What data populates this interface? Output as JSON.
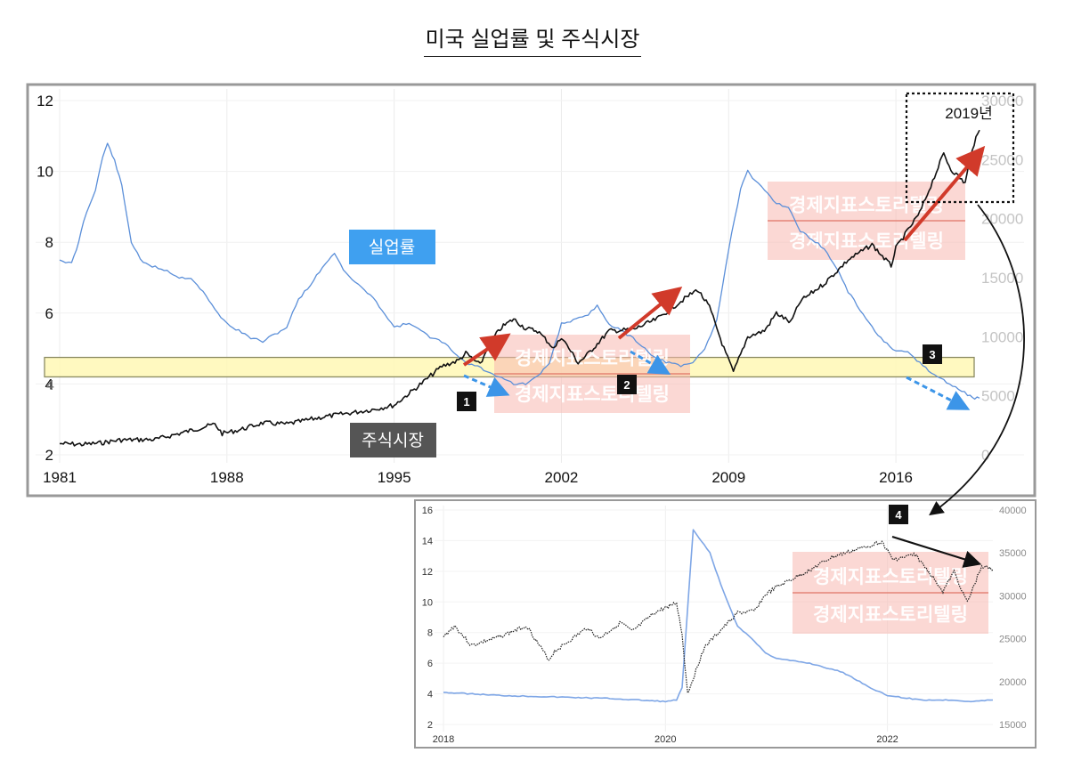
{
  "title": "미국 실업률 및 주식시장",
  "chart_data": [
    {
      "type": "line",
      "x_ticks": [
        1981,
        1988,
        1995,
        2002,
        2009,
        2016
      ],
      "xlim": [
        1981,
        2019.5
      ],
      "y_left_ticks": [
        2,
        4,
        6,
        8,
        10,
        12
      ],
      "ylim_left": [
        2,
        12
      ],
      "y_right_ticks": [
        0,
        5000,
        10000,
        15000,
        20000,
        25000,
        30000
      ],
      "ylim_right": [
        0,
        30000
      ],
      "series": [
        {
          "name": "실업률",
          "axis": "left",
          "color": "#5b8fd9",
          "points": [
            [
              1981.0,
              7.5
            ],
            [
              1981.5,
              7.4
            ],
            [
              1981.8,
              8.0
            ],
            [
              1982.0,
              8.6
            ],
            [
              1982.5,
              9.5
            ],
            [
              1982.8,
              10.4
            ],
            [
              1983.0,
              10.8
            ],
            [
              1983.3,
              10.3
            ],
            [
              1983.6,
              9.6
            ],
            [
              1984.0,
              8.0
            ],
            [
              1984.5,
              7.4
            ],
            [
              1985.0,
              7.3
            ],
            [
              1985.5,
              7.2
            ],
            [
              1986.0,
              7.0
            ],
            [
              1986.5,
              7.0
            ],
            [
              1987.0,
              6.6
            ],
            [
              1987.5,
              6.1
            ],
            [
              1988.0,
              5.7
            ],
            [
              1988.5,
              5.5
            ],
            [
              1989.0,
              5.3
            ],
            [
              1989.5,
              5.2
            ],
            [
              1990.0,
              5.4
            ],
            [
              1990.5,
              5.6
            ],
            [
              1991.0,
              6.4
            ],
            [
              1991.5,
              6.8
            ],
            [
              1992.0,
              7.3
            ],
            [
              1992.5,
              7.7
            ],
            [
              1993.0,
              7.1
            ],
            [
              1993.5,
              6.8
            ],
            [
              1994.0,
              6.5
            ],
            [
              1994.5,
              6.1
            ],
            [
              1995.0,
              5.6
            ],
            [
              1995.5,
              5.7
            ],
            [
              1996.0,
              5.6
            ],
            [
              1996.5,
              5.3
            ],
            [
              1997.0,
              5.2
            ],
            [
              1997.5,
              4.9
            ],
            [
              1998.0,
              4.6
            ],
            [
              1998.5,
              4.5
            ],
            [
              1999.0,
              4.3
            ],
            [
              1999.5,
              4.2
            ],
            [
              2000.0,
              4.0
            ],
            [
              2000.5,
              4.0
            ],
            [
              2001.0,
              4.2
            ],
            [
              2001.5,
              4.6
            ],
            [
              2002.0,
              5.7
            ],
            [
              2002.5,
              5.8
            ],
            [
              2003.0,
              5.9
            ],
            [
              2003.5,
              6.2
            ],
            [
              2004.0,
              5.7
            ],
            [
              2004.5,
              5.5
            ],
            [
              2005.0,
              5.3
            ],
            [
              2005.5,
              5.0
            ],
            [
              2006.0,
              4.7
            ],
            [
              2006.5,
              4.6
            ],
            [
              2007.0,
              4.5
            ],
            [
              2007.5,
              4.6
            ],
            [
              2008.0,
              5.0
            ],
            [
              2008.5,
              5.8
            ],
            [
              2009.0,
              7.8
            ],
            [
              2009.5,
              9.5
            ],
            [
              2009.8,
              10.0
            ],
            [
              2010.0,
              9.8
            ],
            [
              2010.5,
              9.5
            ],
            [
              2011.0,
              9.1
            ],
            [
              2011.5,
              9.0
            ],
            [
              2012.0,
              8.3
            ],
            [
              2012.5,
              8.1
            ],
            [
              2013.0,
              7.8
            ],
            [
              2013.5,
              7.3
            ],
            [
              2014.0,
              6.6
            ],
            [
              2014.5,
              6.1
            ],
            [
              2015.0,
              5.6
            ],
            [
              2015.5,
              5.2
            ],
            [
              2016.0,
              4.9
            ],
            [
              2016.5,
              4.9
            ],
            [
              2017.0,
              4.6
            ],
            [
              2017.5,
              4.3
            ],
            [
              2018.0,
              4.1
            ],
            [
              2018.5,
              3.9
            ],
            [
              2019.0,
              3.7
            ],
            [
              2019.3,
              3.6
            ],
            [
              2019.5,
              3.6
            ]
          ]
        },
        {
          "name": "주식시장",
          "axis": "right",
          "color": "#111111",
          "points": [
            [
              1981.0,
              950
            ],
            [
              1982.0,
              880
            ],
            [
              1982.7,
              1000
            ],
            [
              1983.5,
              1250
            ],
            [
              1985.0,
              1300
            ],
            [
              1986.0,
              1800
            ],
            [
              1987.5,
              2600
            ],
            [
              1987.8,
              1800
            ],
            [
              1988.5,
              2100
            ],
            [
              1989.5,
              2700
            ],
            [
              1990.5,
              2600
            ],
            [
              1991.0,
              2800
            ],
            [
              1992.0,
              3200
            ],
            [
              1993.0,
              3500
            ],
            [
              1994.0,
              3800
            ],
            [
              1995.0,
              4200
            ],
            [
              1996.0,
              5800
            ],
            [
              1997.0,
              7500
            ],
            [
              1997.7,
              8000
            ],
            [
              1998.0,
              8600
            ],
            [
              1998.6,
              7600
            ],
            [
              1999.0,
              9500
            ],
            [
              1999.5,
              10800
            ],
            [
              2000.0,
              11500
            ],
            [
              2000.5,
              10700
            ],
            [
              2001.0,
              10500
            ],
            [
              2001.7,
              9000
            ],
            [
              2002.0,
              10000
            ],
            [
              2002.7,
              7800
            ],
            [
              2003.0,
              8300
            ],
            [
              2003.5,
              9400
            ],
            [
              2004.0,
              10500
            ],
            [
              2005.0,
              10600
            ],
            [
              2006.0,
              11500
            ],
            [
              2007.0,
              13000
            ],
            [
              2007.7,
              14000
            ],
            [
              2008.2,
              12500
            ],
            [
              2008.8,
              9000
            ],
            [
              2009.2,
              7000
            ],
            [
              2009.8,
              10000
            ],
            [
              2010.5,
              10500
            ],
            [
              2011.0,
              12000
            ],
            [
              2011.6,
              11200
            ],
            [
              2012.0,
              13000
            ],
            [
              2013.0,
              14500
            ],
            [
              2014.0,
              16500
            ],
            [
              2015.0,
              17800
            ],
            [
              2015.8,
              16000
            ],
            [
              2016.0,
              17500
            ],
            [
              2017.0,
              20500
            ],
            [
              2018.0,
              25500
            ],
            [
              2018.3,
              24200
            ],
            [
              2018.9,
              23000
            ],
            [
              2019.2,
              26000
            ],
            [
              2019.5,
              27500
            ]
          ]
        }
      ],
      "labels": {
        "unemployment": "실업률",
        "stock": "주식시장",
        "year": "2019년",
        "band": "4",
        "markers": [
          "1",
          "2",
          "3"
        ]
      },
      "watermark": "경제지표스토리텔링"
    },
    {
      "type": "line",
      "x_ticks": [
        2018,
        2020,
        2022
      ],
      "xlim": [
        2018,
        2022.95
      ],
      "y_left_ticks": [
        2,
        4,
        6,
        8,
        10,
        12,
        14,
        16
      ],
      "ylim_left": [
        2,
        16
      ],
      "y_right_ticks": [
        15000,
        20000,
        25000,
        30000,
        35000,
        40000
      ],
      "ylim_right": [
        15000,
        40000
      ],
      "series": [
        {
          "name": "실업률",
          "axis": "left",
          "color": "#7ea6e6",
          "points": [
            [
              2018.0,
              4.1
            ],
            [
              2018.5,
              3.9
            ],
            [
              2019.0,
              3.8
            ],
            [
              2019.5,
              3.7
            ],
            [
              2020.0,
              3.5
            ],
            [
              2020.1,
              3.6
            ],
            [
              2020.15,
              4.4
            ],
            [
              2020.25,
              14.7
            ],
            [
              2020.4,
              13.2
            ],
            [
              2020.5,
              11.1
            ],
            [
              2020.65,
              8.4
            ],
            [
              2020.75,
              7.8
            ],
            [
              2020.9,
              6.7
            ],
            [
              2021.0,
              6.3
            ],
            [
              2021.3,
              6.0
            ],
            [
              2021.6,
              5.4
            ],
            [
              2021.9,
              4.2
            ],
            [
              2022.0,
              3.9
            ],
            [
              2022.3,
              3.6
            ],
            [
              2022.6,
              3.6
            ],
            [
              2022.75,
              3.5
            ],
            [
              2022.95,
              3.6
            ]
          ]
        },
        {
          "name": "주식시장",
          "axis": "right",
          "color": "#222222",
          "points": [
            [
              2018.0,
              25200
            ],
            [
              2018.1,
              26500
            ],
            [
              2018.25,
              24200
            ],
            [
              2018.5,
              25200
            ],
            [
              2018.75,
              26500
            ],
            [
              2018.95,
              22500
            ],
            [
              2019.0,
              23500
            ],
            [
              2019.3,
              26300
            ],
            [
              2019.4,
              25000
            ],
            [
              2019.6,
              26900
            ],
            [
              2019.7,
              25800
            ],
            [
              2019.9,
              28000
            ],
            [
              2020.1,
              29200
            ],
            [
              2020.15,
              25500
            ],
            [
              2020.2,
              18600
            ],
            [
              2020.35,
              24000
            ],
            [
              2020.5,
              26000
            ],
            [
              2020.65,
              28000
            ],
            [
              2020.8,
              28200
            ],
            [
              2020.9,
              30100
            ],
            [
              2021.0,
              31000
            ],
            [
              2021.3,
              33000
            ],
            [
              2021.5,
              34500
            ],
            [
              2021.75,
              35500
            ],
            [
              2021.95,
              36300
            ],
            [
              2022.05,
              34200
            ],
            [
              2022.25,
              34800
            ],
            [
              2022.45,
              31500
            ],
            [
              2022.5,
              30500
            ],
            [
              2022.6,
              32800
            ],
            [
              2022.72,
              29200
            ],
            [
              2022.85,
              33500
            ],
            [
              2022.95,
              33000
            ]
          ]
        }
      ],
      "labels": {
        "marker": "4"
      },
      "watermark": "경제지표스토리텔링"
    }
  ]
}
